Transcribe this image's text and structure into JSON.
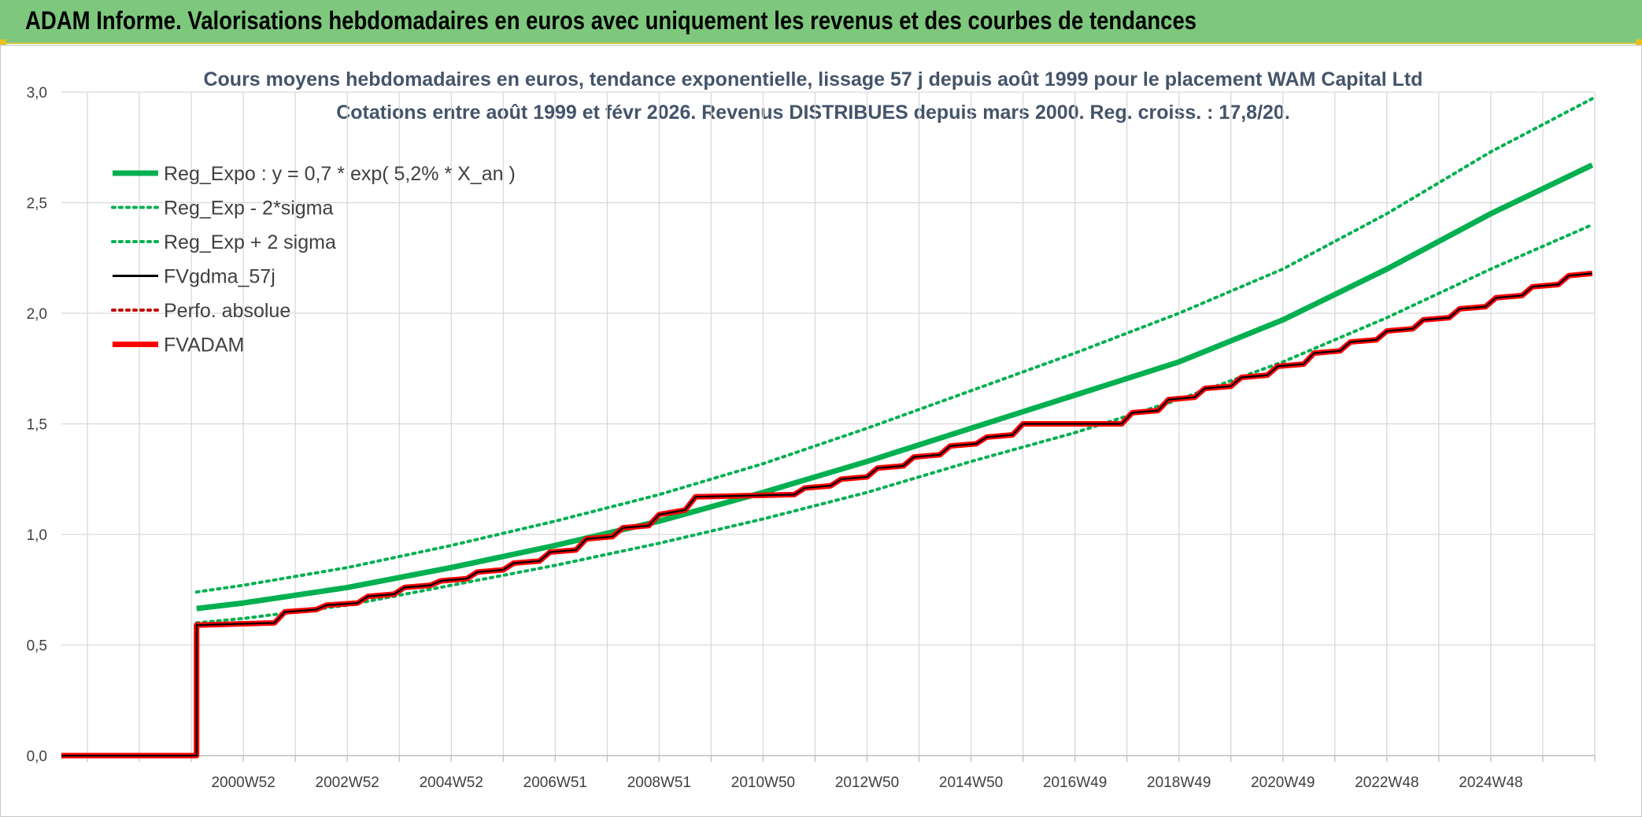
{
  "banner": {
    "title": "ADAM Informe. Valorisations hebdomadaires en euros avec uniquement les revenus et des courbes de tendances"
  },
  "chart_data": {
    "type": "line",
    "title": "Cours moyens hebdomadaires en euros, tendance exponentielle, lissage 57 j depuis août 1999 pour le placement WAM Capital Ltd",
    "subtitle": "Cotations entre août 1999 et févr 2026. Revenus DISTRIBUES depuis mars 2000. Reg. croiss. : 17,8/20.",
    "xlabel": "",
    "ylabel": "",
    "x_range": [
      1996.5,
      2026.0
    ],
    "ylim": [
      0,
      3.0
    ],
    "yticks": [
      "0,0",
      "0,5",
      "1,0",
      "1,5",
      "2,0",
      "2,5",
      "3,0"
    ],
    "xticks": [
      {
        "label": "2000W52",
        "x": 2000.0
      },
      {
        "label": "2002W52",
        "x": 2002.0
      },
      {
        "label": "2004W52",
        "x": 2004.0
      },
      {
        "label": "2006W51",
        "x": 2006.0
      },
      {
        "label": "2008W51",
        "x": 2008.0
      },
      {
        "label": "2010W50",
        "x": 2010.0
      },
      {
        "label": "2012W50",
        "x": 2012.0
      },
      {
        "label": "2014W50",
        "x": 2014.0
      },
      {
        "label": "2016W49",
        "x": 2016.0
      },
      {
        "label": "2018W49",
        "x": 2018.0
      },
      {
        "label": "2020W49",
        "x": 2020.0
      },
      {
        "label": "2022W48",
        "x": 2022.0
      },
      {
        "label": "2024W48",
        "x": 2024.0
      }
    ],
    "grid": true,
    "legend_position": "top-left",
    "series": [
      {
        "name": "Reg_Expo : y = 0,7 * exp( 5,2% *  X_an )",
        "color": "#00b050",
        "style": "solid-thick",
        "points": [
          [
            1999.1,
            0.665
          ],
          [
            2000,
            0.69
          ],
          [
            2002,
            0.76
          ],
          [
            2004,
            0.85
          ],
          [
            2006,
            0.95
          ],
          [
            2008,
            1.06
          ],
          [
            2010,
            1.19
          ],
          [
            2012,
            1.33
          ],
          [
            2014,
            1.48
          ],
          [
            2016,
            1.63
          ],
          [
            2018,
            1.78
          ],
          [
            2020,
            1.97
          ],
          [
            2022,
            2.2
          ],
          [
            2024,
            2.45
          ],
          [
            2025.95,
            2.67
          ]
        ]
      },
      {
        "name": "Reg_Exp - 2*sigma",
        "color": "#00b050",
        "style": "dotted",
        "points": [
          [
            1999.1,
            0.6
          ],
          [
            2000,
            0.62
          ],
          [
            2002,
            0.68
          ],
          [
            2004,
            0.77
          ],
          [
            2006,
            0.86
          ],
          [
            2008,
            0.96
          ],
          [
            2010,
            1.07
          ],
          [
            2012,
            1.19
          ],
          [
            2014,
            1.33
          ],
          [
            2016,
            1.46
          ],
          [
            2018,
            1.61
          ],
          [
            2020,
            1.78
          ],
          [
            2022,
            1.98
          ],
          [
            2024,
            2.2
          ],
          [
            2025.95,
            2.4
          ]
        ]
      },
      {
        "name": "Reg_Exp + 2 sigma",
        "color": "#00b050",
        "style": "dotted",
        "points": [
          [
            1999.1,
            0.74
          ],
          [
            2000,
            0.77
          ],
          [
            2002,
            0.85
          ],
          [
            2004,
            0.95
          ],
          [
            2006,
            1.06
          ],
          [
            2008,
            1.18
          ],
          [
            2010,
            1.32
          ],
          [
            2012,
            1.48
          ],
          [
            2014,
            1.65
          ],
          [
            2016,
            1.82
          ],
          [
            2018,
            2.0
          ],
          [
            2020,
            2.2
          ],
          [
            2022,
            2.45
          ],
          [
            2024,
            2.73
          ],
          [
            2025.95,
            2.97
          ]
        ]
      },
      {
        "name": "FVgdma_57j",
        "color": "#000000",
        "style": "solid",
        "points": [
          [
            1996.5,
            0.0
          ],
          [
            1999.1,
            0.0
          ],
          [
            1999.1,
            0.59
          ],
          [
            2000.6,
            0.6
          ],
          [
            2000.8,
            0.65
          ],
          [
            2001.4,
            0.66
          ],
          [
            2001.6,
            0.68
          ],
          [
            2002.2,
            0.69
          ],
          [
            2002.4,
            0.72
          ],
          [
            2002.9,
            0.73
          ],
          [
            2003.1,
            0.76
          ],
          [
            2003.6,
            0.77
          ],
          [
            2003.8,
            0.79
          ],
          [
            2004.3,
            0.8
          ],
          [
            2004.5,
            0.83
          ],
          [
            2005.0,
            0.84
          ],
          [
            2005.2,
            0.87
          ],
          [
            2005.7,
            0.88
          ],
          [
            2005.9,
            0.92
          ],
          [
            2006.4,
            0.93
          ],
          [
            2006.6,
            0.98
          ],
          [
            2007.1,
            0.99
          ],
          [
            2007.3,
            1.03
          ],
          [
            2007.8,
            1.04
          ],
          [
            2008.0,
            1.09
          ],
          [
            2008.5,
            1.11
          ],
          [
            2008.7,
            1.17
          ],
          [
            2010.6,
            1.18
          ],
          [
            2010.8,
            1.21
          ],
          [
            2011.3,
            1.22
          ],
          [
            2011.5,
            1.25
          ],
          [
            2012.0,
            1.26
          ],
          [
            2012.2,
            1.3
          ],
          [
            2012.7,
            1.31
          ],
          [
            2012.9,
            1.35
          ],
          [
            2013.4,
            1.36
          ],
          [
            2013.6,
            1.4
          ],
          [
            2014.1,
            1.41
          ],
          [
            2014.3,
            1.44
          ],
          [
            2014.8,
            1.45
          ],
          [
            2015.0,
            1.5
          ],
          [
            2016.5,
            1.5
          ],
          [
            2016.9,
            1.5
          ],
          [
            2017.1,
            1.55
          ],
          [
            2017.6,
            1.56
          ],
          [
            2017.8,
            1.61
          ],
          [
            2018.3,
            1.62
          ],
          [
            2018.5,
            1.66
          ],
          [
            2019.0,
            1.67
          ],
          [
            2019.2,
            1.71
          ],
          [
            2019.7,
            1.72
          ],
          [
            2019.9,
            1.76
          ],
          [
            2020.4,
            1.77
          ],
          [
            2020.6,
            1.82
          ],
          [
            2021.1,
            1.83
          ],
          [
            2021.3,
            1.87
          ],
          [
            2021.8,
            1.88
          ],
          [
            2022.0,
            1.92
          ],
          [
            2022.5,
            1.93
          ],
          [
            2022.7,
            1.97
          ],
          [
            2023.2,
            1.98
          ],
          [
            2023.4,
            2.02
          ],
          [
            2023.9,
            2.03
          ],
          [
            2024.1,
            2.07
          ],
          [
            2024.6,
            2.08
          ],
          [
            2024.8,
            2.12
          ],
          [
            2025.3,
            2.13
          ],
          [
            2025.5,
            2.17
          ],
          [
            2025.95,
            2.18
          ]
        ]
      },
      {
        "name": "Perfo. absolue",
        "color": "#c00000",
        "style": "dotted",
        "points": []
      },
      {
        "name": "FVADAM",
        "color": "#ff0000",
        "style": "solid-thick",
        "points": []
      }
    ]
  }
}
